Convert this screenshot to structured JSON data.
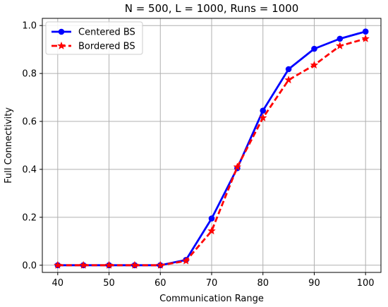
{
  "chart_data": {
    "type": "line",
    "title": "N = 500, L = 1000, Runs = 1000",
    "xlabel": "Communication Range",
    "ylabel": "Full Connectivity",
    "xlim": [
      37.0,
      103.0
    ],
    "ylim": [
      -0.03,
      1.03
    ],
    "xticks": [
      40,
      50,
      60,
      70,
      80,
      90,
      100
    ],
    "yticks": [
      0.0,
      0.2,
      0.4,
      0.6,
      0.8,
      1.0
    ],
    "xtick_labels": [
      "40",
      "50",
      "60",
      "70",
      "80",
      "90",
      "100"
    ],
    "ytick_labels": [
      "0.0",
      "0.2",
      "0.4",
      "0.6",
      "0.8",
      "1.0"
    ],
    "grid": true,
    "legend_position": "upper-left",
    "x": [
      40,
      45,
      50,
      55,
      60,
      65,
      70,
      75,
      80,
      85,
      90,
      95,
      100
    ],
    "series": [
      {
        "name": "Centered BS",
        "color": "#0000ff",
        "style": "solid",
        "marker": "circle",
        "values": [
          0.0,
          0.0,
          0.0,
          0.0,
          0.0,
          0.022,
          0.195,
          0.405,
          0.645,
          0.818,
          0.903,
          0.945,
          0.975
        ]
      },
      {
        "name": "Bordered BS",
        "color": "#ff0000",
        "style": "dashed",
        "marker": "star",
        "values": [
          0.0,
          0.0,
          0.0,
          0.0,
          0.0,
          0.018,
          0.143,
          0.41,
          0.615,
          0.773,
          0.835,
          0.915,
          0.945
        ]
      }
    ]
  }
}
